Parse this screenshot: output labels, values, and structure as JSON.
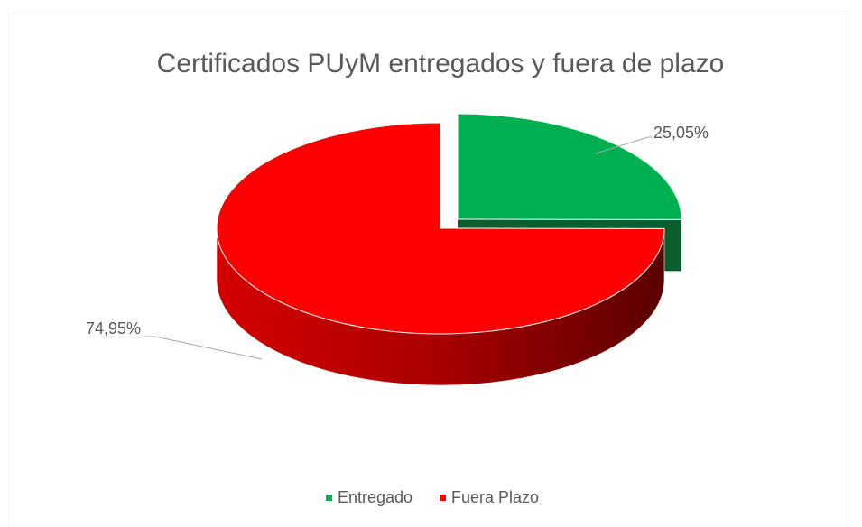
{
  "chart_data": {
    "type": "pie",
    "title": "Certificados PUyM entregados y fuera de plazo",
    "categories": [
      "Entregado",
      "Fuera Plazo"
    ],
    "values": [
      25.05,
      74.95
    ],
    "value_labels": [
      "25,05%",
      "74,95%"
    ],
    "colors": [
      "#00b050",
      "#ff0000"
    ],
    "legend": "bottom"
  }
}
